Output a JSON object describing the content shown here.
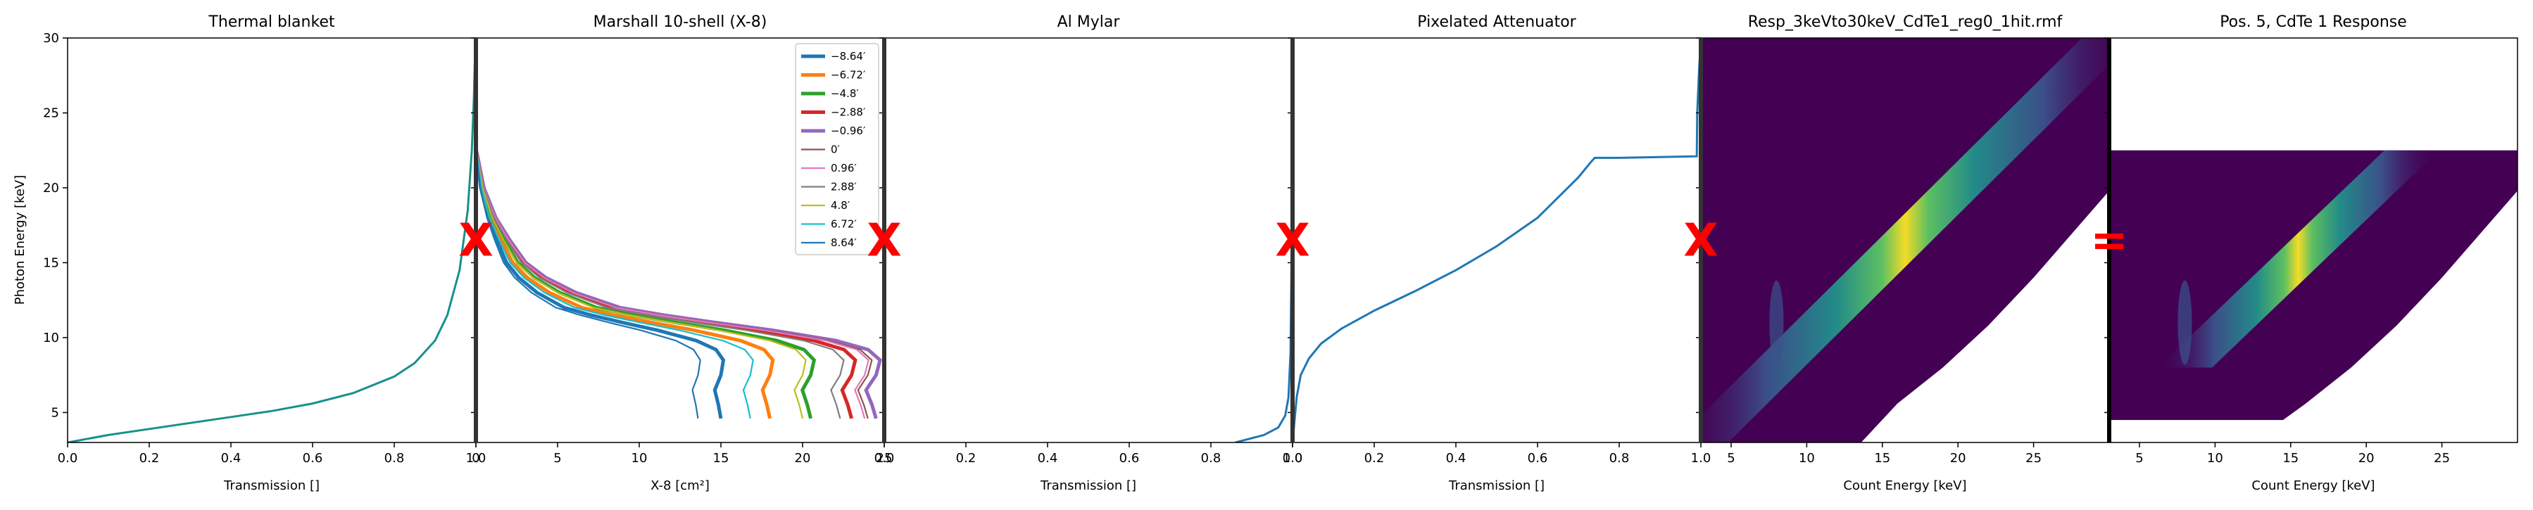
{
  "figure": {
    "shared_ylabel": "Photon Energy [keV]",
    "shared_yticks": [
      5,
      10,
      15,
      20,
      25,
      30
    ],
    "shared_ylim": [
      3,
      30
    ],
    "operators": [
      "X",
      "X",
      "X",
      "X",
      "="
    ],
    "operator_color": "#ff0000"
  },
  "chart_data": [
    {
      "type": "line",
      "title": "Thermal blanket",
      "xlabel": "Transmission []",
      "ylabel": "Photon Energy [keV]",
      "xlim": [
        0,
        1
      ],
      "ylim": [
        3,
        30
      ],
      "xticks": [
        "0.0",
        "0.2",
        "0.4",
        "0.6",
        "0.8",
        "1.0"
      ],
      "grid": false,
      "series": [
        {
          "color": "#17918a",
          "x": [
            0.0,
            0.1,
            0.2,
            0.3,
            0.4,
            0.5,
            0.6,
            0.7,
            0.8,
            0.85,
            0.9,
            0.93,
            0.96,
            0.98,
            0.99,
            0.995,
            0.999
          ],
          "y": [
            3.0,
            3.5,
            3.9,
            4.3,
            4.7,
            5.1,
            5.6,
            6.3,
            7.4,
            8.3,
            9.8,
            11.5,
            14.5,
            18.5,
            22.5,
            26.0,
            30.0
          ]
        }
      ]
    },
    {
      "type": "line",
      "title": "Marshall 10-shell (X-8)",
      "xlabel": "X-8 [cm²]",
      "ylabel": "",
      "xlim": [
        0,
        25
      ],
      "ylim": [
        3,
        30
      ],
      "xticks": [
        "0",
        "5",
        "10",
        "15",
        "20",
        "25"
      ],
      "legend_position": "upper right",
      "grid": false,
      "series": [
        {
          "name": "−8.64′",
          "color": "#1f77b4",
          "emphasis": true,
          "x_low": 15.0
        },
        {
          "name": "−6.72′",
          "color": "#ff7f0e",
          "emphasis": true,
          "x_low": 18.0
        },
        {
          "name": "−4.8′",
          "color": "#2ca02c",
          "emphasis": true,
          "x_low": 20.5
        },
        {
          "name": "−2.88′",
          "color": "#d62728",
          "emphasis": true,
          "x_low": 23.0
        },
        {
          "name": "−0.96′",
          "color": "#9467bd",
          "emphasis": true,
          "x_low": 24.5
        },
        {
          "name": "0′",
          "color": "#8c564b",
          "emphasis": false,
          "x_low": 24.0
        },
        {
          "name": "0.96′",
          "color": "#e377c2",
          "emphasis": false,
          "x_low": 23.8
        },
        {
          "name": "2.88′",
          "color": "#7f7f7f",
          "emphasis": false,
          "x_low": 22.3
        },
        {
          "name": "4.8′",
          "color": "#bcbd22",
          "emphasis": false,
          "x_low": 20.0
        },
        {
          "name": "6.72′",
          "color": "#17becf",
          "emphasis": false,
          "x_low": 16.8
        },
        {
          "name": "8.64′",
          "color": "#1f77b4",
          "emphasis": false,
          "x_low": 13.6
        }
      ],
      "shared_y": [
        4.6,
        5.5,
        6.5,
        7.5,
        8.5,
        9.2,
        9.8,
        10.5,
        11.0,
        11.5,
        12.0,
        13.0,
        14.0,
        15.0,
        16.5,
        18.0,
        20.0,
        22.0,
        22.6
      ],
      "shape_fraction": [
        1.0,
        0.99,
        0.975,
        1.0,
        1.01,
        0.98,
        0.9,
        0.74,
        0.6,
        0.47,
        0.36,
        0.25,
        0.175,
        0.125,
        0.085,
        0.05,
        0.02,
        0.005,
        0.0
      ]
    },
    {
      "type": "line",
      "title": "Al Mylar",
      "xlabel": "Transmission []",
      "ylabel": "",
      "xlim": [
        0,
        1
      ],
      "ylim": [
        3,
        30
      ],
      "xticks": [
        "0.0",
        "0.2",
        "0.4",
        "0.6",
        "0.8",
        "1.0"
      ],
      "grid": false,
      "series": [
        {
          "color": "#1f77b4",
          "x": [
            0.86,
            0.93,
            0.965,
            0.982,
            0.99,
            0.995,
            0.998,
            0.999
          ],
          "y": [
            3.0,
            3.5,
            4.0,
            4.8,
            6.0,
            9.0,
            16.0,
            30.0
          ]
        }
      ]
    },
    {
      "type": "line",
      "title": "Pixelated Attenuator",
      "xlabel": "Transmission []",
      "ylabel": "",
      "xlim": [
        0,
        1
      ],
      "ylim": [
        3,
        30
      ],
      "xticks": [
        "0.0",
        "0.2",
        "0.4",
        "0.6",
        "0.8",
        "1.0"
      ],
      "grid": false,
      "series": [
        {
          "color": "#1f77b4",
          "x": [
            0.0,
            0.005,
            0.01,
            0.02,
            0.04,
            0.07,
            0.12,
            0.2,
            0.3,
            0.4,
            0.5,
            0.6,
            0.7,
            0.73,
            0.74,
            0.8,
            0.9,
            0.99,
            0.991,
            0.995,
            1.0
          ],
          "y": [
            3.0,
            4.5,
            6.0,
            7.5,
            8.6,
            9.6,
            10.6,
            11.8,
            13.1,
            14.5,
            16.1,
            18.0,
            20.7,
            21.7,
            22.0,
            22.0,
            22.05,
            22.1,
            25.0,
            27.5,
            30.0
          ]
        }
      ]
    },
    {
      "type": "heatmap",
      "title": "Resp_3keVto30keV_CdTe1_reg0_1hit.rmf",
      "xlabel": "Count Energy [keV]",
      "ylabel": "",
      "xlim": [
        3,
        30
      ],
      "ylim": [
        3,
        30
      ],
      "xticks": [
        "5",
        "10",
        "15",
        "20",
        "25"
      ],
      "colormap": "viridis",
      "background": "#440154",
      "blank_below_edge": {
        "x": [
          13.6,
          16,
          19,
          22,
          25,
          30
        ],
        "y": [
          3.0,
          5.6,
          8.0,
          10.8,
          14.0,
          19.8
        ]
      },
      "main_ridge": {
        "x": [
          3,
          30
        ],
        "y": [
          3,
          30
        ],
        "width_keV": 1.8
      },
      "escape_feature_keV": 8.0
    },
    {
      "type": "heatmap",
      "title": "Pos. 5, CdTe 1 Response",
      "xlabel": "Count Energy [keV]",
      "ylabel": "",
      "xlim": [
        3,
        30
      ],
      "ylim": [
        3,
        30
      ],
      "xticks": [
        "5",
        "10",
        "15",
        "20",
        "25"
      ],
      "colormap": "viridis",
      "background": "#440154",
      "energy_range": [
        4.5,
        22.5
      ],
      "blank_below_edge": {
        "x": [
          14.5,
          16,
          19,
          22,
          25,
          30
        ],
        "y": [
          4.5,
          5.6,
          8.0,
          10.8,
          14.0,
          19.8
        ]
      },
      "main_ridge": {
        "x": [
          8,
          23
        ],
        "y": [
          8,
          22.5
        ],
        "width_keV": 1.8
      },
      "escape_feature_keV": 8.0
    }
  ]
}
